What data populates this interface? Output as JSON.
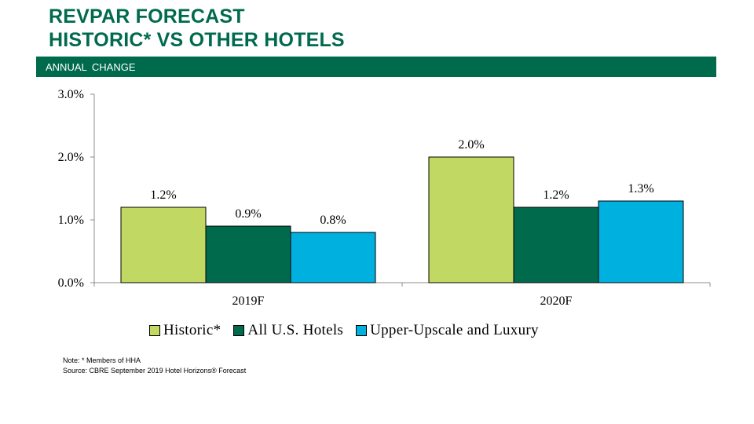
{
  "header": {
    "title_line1": "REVPAR FORECAST",
    "title_line2": "HISTORIC* VS OTHER HOTELS",
    "subtitle": "ANNUAL  CHANGE"
  },
  "colors": {
    "brand_green": "#006a4d",
    "historic": "#c1d862",
    "all_us": "#006a4d",
    "upper_upscale": "#00b0df"
  },
  "chart_data": {
    "type": "bar",
    "title": "REVPAR FORECAST HISTORIC* VS OTHER HOTELS",
    "xlabel": "",
    "ylabel": "",
    "categories": [
      "2019F",
      "2020F"
    ],
    "series": [
      {
        "name": "Historic*",
        "values": [
          1.2,
          2.0
        ],
        "labels": [
          "1.2%",
          "2.0%"
        ],
        "color": "#c1d862"
      },
      {
        "name": "All U.S. Hotels",
        "values": [
          0.9,
          1.2
        ],
        "labels": [
          "0.9%",
          "1.2%"
        ],
        "color": "#006a4d"
      },
      {
        "name": "Upper-Upscale and Luxury",
        "values": [
          0.8,
          1.3
        ],
        "labels": [
          "0.8%",
          "1.3%"
        ],
        "color": "#00b0df"
      }
    ],
    "ylim": [
      0,
      3.0
    ],
    "yticks": [
      0,
      1.0,
      2.0,
      3.0
    ],
    "ytick_labels": [
      "0.0%",
      "1.0%",
      "2.0%",
      "3.0%"
    ],
    "grid": false,
    "legend": "bottom"
  },
  "notes": {
    "note": "Note: * Members of HHA",
    "source": "Source: CBRE September 2019 Hotel Horizons® Forecast"
  }
}
